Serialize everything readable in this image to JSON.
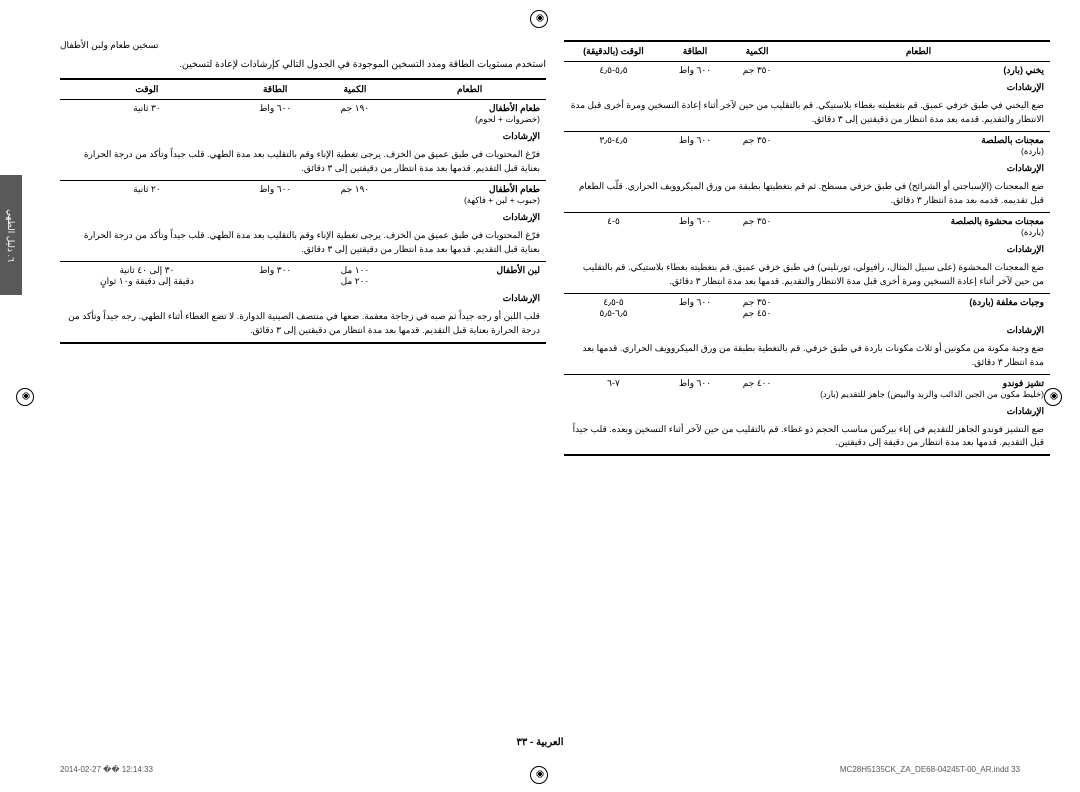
{
  "page": {
    "section_title": "تسخين طعام ولبن الأطفال",
    "intro": "استخدم مستويات الطاقة ومدد التسخين الموجودة في الجدول التالي كإرشادات لإعادة لتسخين.",
    "page_number_label": "العربية - ٣٣",
    "side_tab": "٦. دليل الطهي"
  },
  "table_right": {
    "headers": {
      "food": "الطعام",
      "qty": "الكمية",
      "power": "الطاقة",
      "time": "الوقت (بالدقيقة)"
    },
    "rows": [
      {
        "food": "يخني (بارد)",
        "qty": "٣٥٠ جم",
        "power": "٦٠٠ واط",
        "time": "٥٫٥-٤٫٥",
        "instr_label": "الإرشادات",
        "instr": "ضع اليخني في طبق خزفي عميق. قم بتغطيته بغطاء بلاستيكي. قم بالتقليب من حين لآخر أثناء إعادة التسخين ومرة أخرى قبل مدة الانتظار والتقديم. قدمه بعد مدة انتظار من دقيقتين إلى ٣ دقائق."
      },
      {
        "food": "معجنات بالصلصة",
        "food_sub": "(باردة)",
        "qty": "٣٥٠ جم",
        "power": "٦٠٠ واط",
        "time": "٤٫٥-٣٫٥",
        "instr_label": "الإرشادات",
        "instr": "ضع المعجنات (الإسباجتي أو الشرائح) في طبق خزفي مسطح. ثم قم بتغطيتها بطبقة من ورق الميكروويف الحراري. قلّب الطعام قبل تقديمه. قدمه بعد مدة انتظار ٣ دقائق."
      },
      {
        "food": "معجنات محشوة بالصلصة",
        "food_sub": "(باردة)",
        "qty": "٣٥٠ جم",
        "power": "٦٠٠ واط",
        "time": "٥-٤",
        "instr_label": "الإرشادات",
        "instr": "ضع المعجنات المحشوة (على سبيل المثال، رافيولي، تورتليني) في طبق خزفي عميق. قم بتغطيته بغطاء بلاستيكي. قم بالتقليب من حين لآخر أثناء إعادة التسخين ومرة أخرى قبل مدة الانتظار والتقديم. قدمها بعد مدة انتظار ٣ دقائق."
      },
      {
        "food": "وجبات مغلفة (باردة)",
        "qty": "٣٥٠ جم\n٤٥٠ جم",
        "power": "٦٠٠ واط",
        "time": "٥-٤٫٥\n٦٫٥-٥٫٥",
        "instr_label": "الإرشادات",
        "instr": "ضع وجبة مكونة من مكونين أو ثلاث مكونات باردة في طبق خزفي. قم بالتغطية بطبقة من ورق الميكروويف الحراري. قدمها بعد مدة انتظار ٣ دقائق."
      },
      {
        "food": "تشيز فوندو",
        "food_sub": "(خليط مكون من الجبن الذائب والزبد والبيض) جاهز للتقديم (بارد)",
        "qty": "٤٠٠ جم",
        "power": "٦٠٠ واط",
        "time": "٧-٦",
        "instr_label": "الإرشادات",
        "instr": "ضع التشيز فوندو الجاهز للتقديم في إناء بيركس مناسب الحجم ذو غطاء. قم بالتقليب من حين لآخر أثناء التسخين وبعده. قلب جيداً قبل التقديم. قدمها بعد مدة انتظار من دقيقة إلى دقيقتين."
      }
    ]
  },
  "table_left": {
    "headers": {
      "food": "الطعام",
      "qty": "الكمية",
      "power": "الطاقة",
      "time": "الوقت"
    },
    "rows": [
      {
        "food": "طعام الأطفال",
        "food_sub": "(خضروات + لحوم)",
        "qty": "١٩٠ جم",
        "power": "٦٠٠ واط",
        "time": "٣٠ ثانية",
        "instr_label": "الإرشادات",
        "instr": "فرّغ المحتويات في طبق عميق من الخزف. يرجى تغطية الإناء وقم بالتقليب بعد مدة الطهي. قلب جيداً وتأكد من درجة الحرارة بعناية قبل التقديم. قدمها بعد مدة انتظار من دقيقتين إلى ٣ دقائق."
      },
      {
        "food": "طعام الأطفال",
        "food_sub": "(حبوب + لبن + فاكهة)",
        "qty": "١٩٠ جم",
        "power": "٦٠٠ واط",
        "time": "٢٠ ثانية",
        "instr_label": "الإرشادات",
        "instr": "فرّغ المحتويات في طبق عميق من الخزف. يرجى تغطية الإناء وقم بالتقليب بعد مدة الطهي. قلب جيداً وتأكد من درجة الحرارة بعناية قبل التقديم. قدمها بعد مدة انتظار من دقيقتين إلى ٣ دقائق."
      },
      {
        "food": "لبن الأطفال",
        "qty": "١٠٠ مل\n٢٠٠ مل",
        "power": "٣٠٠ واط",
        "time": "٣٠ إلى ٤٠ ثانية\nدقيقة إلى دقيقة و١٠ ثوانٍ",
        "instr_label": "الإرشادات",
        "instr": "قلب اللبن أو رجه جيداً ثم صبه في زجاجة معقمة. ضعها في منتصف الصينية الدوارة. لا تضع الغطاء أثناء الطهي. رجه جيداً وتأكد من درجة الحرارة بعناية قبل التقديم. قدمها بعد مدة انتظار من دقيقتين إلى ٣ دقائق."
      }
    ]
  },
  "footer": {
    "left": "MC28H5135CK_ZA_DE68-04245T-00_AR.indd   33",
    "right": "2014-02-27   ��  12:14:33"
  }
}
